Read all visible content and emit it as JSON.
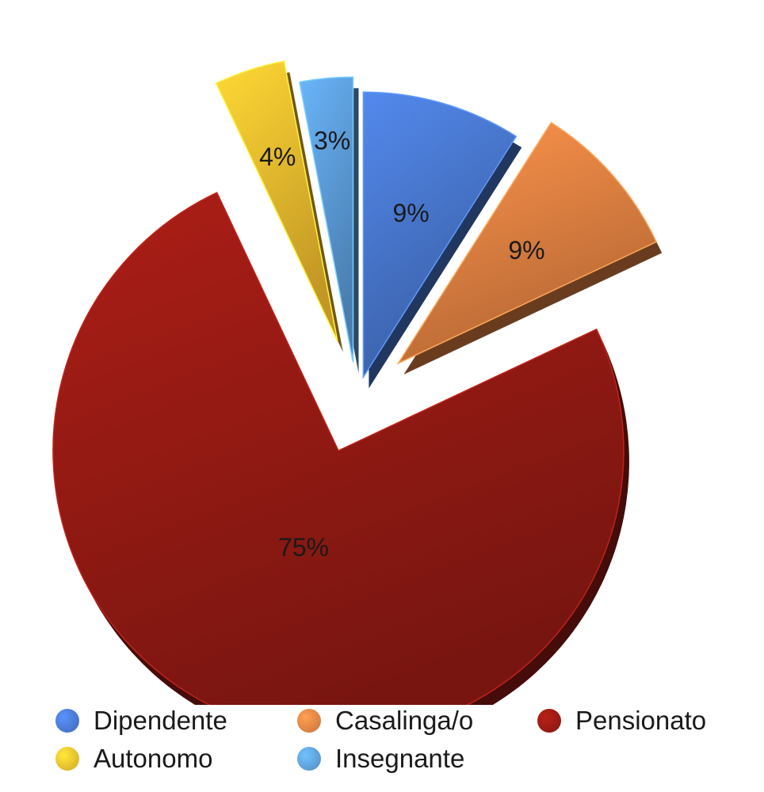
{
  "chart_data": {
    "type": "pie",
    "exploded": true,
    "categories": [
      "Dipendente",
      "Casalinga/o",
      "Pensionato",
      "Autonomo",
      "Insegnante"
    ],
    "values": [
      9,
      9,
      75,
      4,
      3
    ],
    "labels": [
      "9%",
      "9%",
      "75%",
      "4%",
      "3%"
    ],
    "colors": [
      "#4A7AD4",
      "#EB8544",
      "#9A1B14",
      "#F9C22F",
      "#5FA2E0"
    ],
    "legend_position": "bottom"
  }
}
